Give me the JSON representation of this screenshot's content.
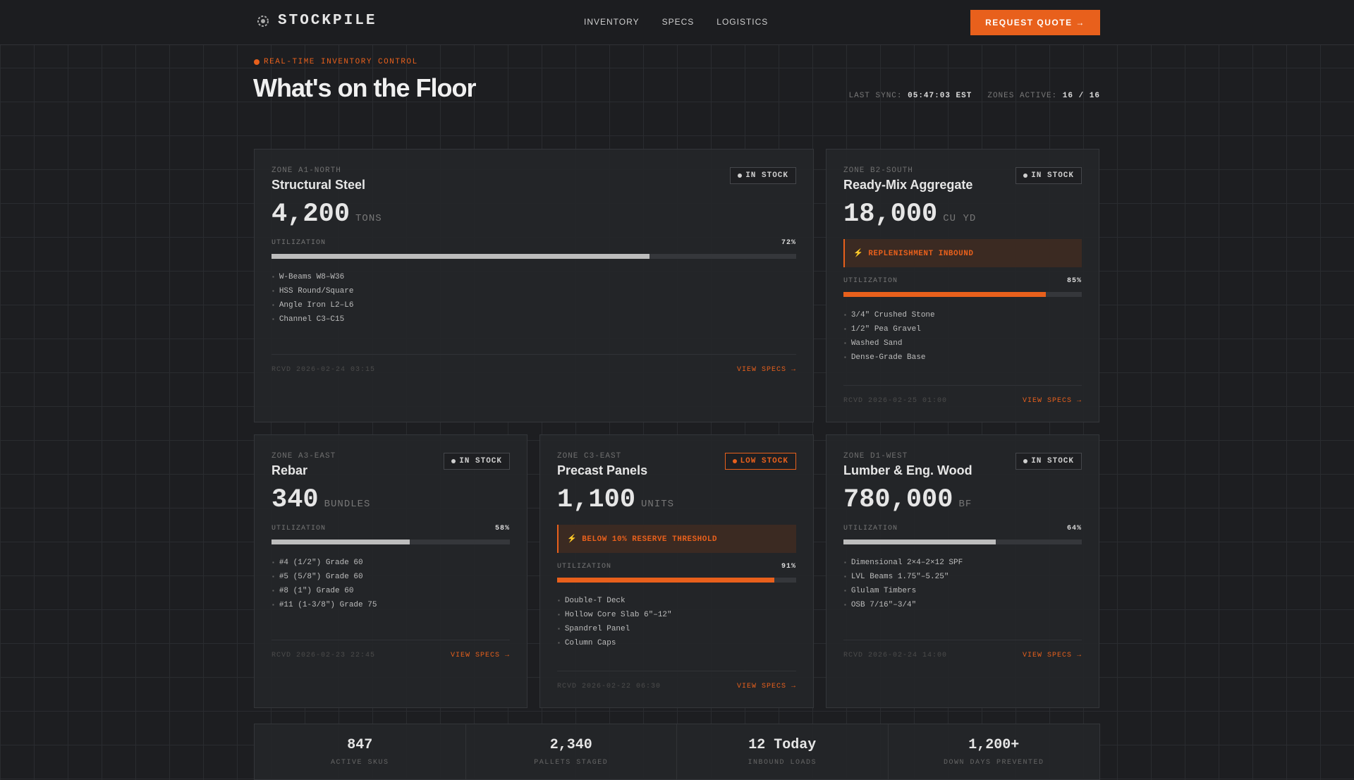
{
  "nav": {
    "brand": "STOCKPILE",
    "links": [
      "INVENTORY",
      "SPECS",
      "LOGISTICS"
    ],
    "cta": "REQUEST QUOTE →"
  },
  "header": {
    "tag": "REAL-TIME INVENTORY CONTROL",
    "title": "What's on the Floor",
    "sync_label": "LAST SYNC:",
    "sync_value": "05:47:03 EST",
    "zones_label": "ZONES ACTIVE:",
    "zones_value": "16 / 16"
  },
  "utilization_label": "UTILIZATION",
  "cards": [
    {
      "zone": "ZONE A1-NORTH",
      "name": "Structural Steel",
      "status": "IN STOCK",
      "badge_color": "#cfcfcf",
      "quantity": "4,200",
      "unit": "TONS",
      "utilization": 72,
      "utilization_text": "72%",
      "bar_color": "#bdbdbd",
      "items": [
        "W-Beams W8–W36",
        "HSS Round/Square",
        "Angle Iron L2–L6",
        "Channel C3–C15"
      ],
      "received": "RCVD 2026-02-24 03:15",
      "link": "VIEW SPECS →"
    },
    {
      "zone": "ZONE B2-SOUTH",
      "name": "Ready-Mix Aggregate",
      "status": "IN STOCK",
      "badge_color": "#cfcfcf",
      "quantity": "18,000",
      "unit": "CU YD",
      "alert": "⚡ REPLENISHMENT INBOUND",
      "utilization": 85,
      "utilization_text": "85%",
      "bar_color": "#e8601c",
      "items": [
        "3/4\" Crushed Stone",
        "1/2\" Pea Gravel",
        "Washed Sand",
        "Dense-Grade Base"
      ],
      "received": "RCVD 2026-02-25 01:00",
      "link": "VIEW SPECS →"
    },
    {
      "zone": "ZONE A3-EAST",
      "name": "Rebar",
      "status": "IN STOCK",
      "badge_color": "#cfcfcf",
      "quantity": "340",
      "unit": "BUNDLES",
      "utilization": 58,
      "utilization_text": "58%",
      "bar_color": "#bdbdbd",
      "items": [
        "#4 (1/2\") Grade 60",
        "#5 (5/8\") Grade 60",
        "#8 (1\") Grade 60",
        "#11 (1-3/8\") Grade 75"
      ],
      "received": "RCVD 2026-02-23 22:45",
      "link": "VIEW SPECS →"
    },
    {
      "zone": "ZONE C3-EAST",
      "name": "Precast Panels",
      "status": "LOW STOCK",
      "badge_color": "#e8601c",
      "quantity": "1,100",
      "unit": "UNITS",
      "alert": "⚡ BELOW 10% RESERVE THRESHOLD",
      "utilization": 91,
      "utilization_text": "91%",
      "bar_color": "#e8601c",
      "items": [
        "Double-T Deck",
        "Hollow Core Slab 6\"–12\"",
        "Spandrel Panel",
        "Column Caps"
      ],
      "received": "RCVD 2026-02-22 06:30",
      "link": "VIEW SPECS →"
    },
    {
      "zone": "ZONE D1-WEST",
      "name": "Lumber & Eng. Wood",
      "status": "IN STOCK",
      "badge_color": "#cfcfcf",
      "quantity": "780,000",
      "unit": "BF",
      "utilization": 64,
      "utilization_text": "64%",
      "bar_color": "#bdbdbd",
      "items": [
        "Dimensional 2×4–2×12 SPF",
        "LVL Beams 1.75\"–5.25\"",
        "Glulam Timbers",
        "OSB 7/16\"–3/4\""
      ],
      "received": "RCVD 2026-02-24 14:00",
      "link": "VIEW SPECS →"
    }
  ],
  "stats": [
    {
      "value": "847",
      "label": "ACTIVE SKUS"
    },
    {
      "value": "2,340",
      "label": "PALLETS STAGED"
    },
    {
      "value": "12 Today",
      "label": "INBOUND LOADS"
    },
    {
      "value": "1,200+",
      "label": "DOWN DAYS PREVENTED"
    }
  ]
}
